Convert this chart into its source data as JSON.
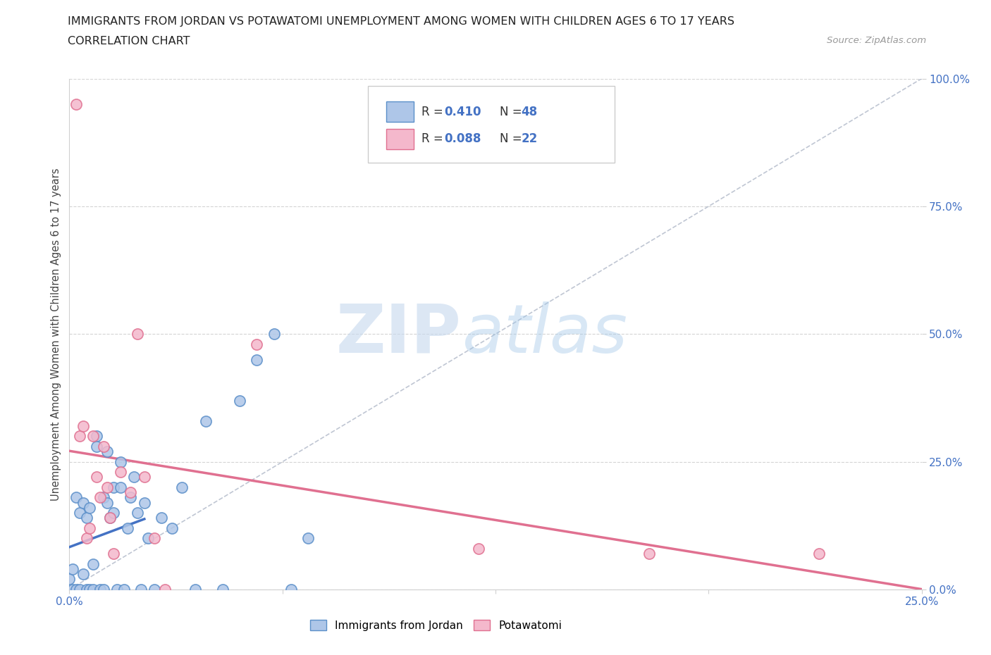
{
  "title_line1": "IMMIGRANTS FROM JORDAN VS POTAWATOMI UNEMPLOYMENT AMONG WOMEN WITH CHILDREN AGES 6 TO 17 YEARS",
  "title_line2": "CORRELATION CHART",
  "source": "Source: ZipAtlas.com",
  "ylabel_label": "Unemployment Among Women with Children Ages 6 to 17 years",
  "color_jordan": "#aec6e8",
  "color_jordan_edge": "#5b8fc9",
  "color_potawatomi": "#f4b8cc",
  "color_potawatomi_edge": "#e07090",
  "color_blue": "#4472c4",
  "color_pink": "#e07090",
  "color_diag": "#b0b8c8",
  "watermark_color": "#d0e4f4",
  "background_color": "#ffffff",
  "grid_color": "#d0d0d0",
  "tick_color": "#4472c4",
  "jordan_x": [
    0.0,
    0.001,
    0.001,
    0.002,
    0.002,
    0.003,
    0.003,
    0.004,
    0.004,
    0.005,
    0.005,
    0.006,
    0.006,
    0.007,
    0.007,
    0.008,
    0.008,
    0.009,
    0.01,
    0.01,
    0.011,
    0.011,
    0.012,
    0.013,
    0.013,
    0.014,
    0.015,
    0.015,
    0.016,
    0.017,
    0.018,
    0.019,
    0.02,
    0.021,
    0.022,
    0.023,
    0.025,
    0.027,
    0.03,
    0.033,
    0.037,
    0.04,
    0.045,
    0.05,
    0.055,
    0.06,
    0.065,
    0.07
  ],
  "jordan_y": [
    0.02,
    0.0,
    0.04,
    0.0,
    0.18,
    0.0,
    0.15,
    0.03,
    0.17,
    0.0,
    0.14,
    0.0,
    0.16,
    0.05,
    0.0,
    0.3,
    0.28,
    0.0,
    0.18,
    0.0,
    0.17,
    0.27,
    0.14,
    0.2,
    0.15,
    0.0,
    0.25,
    0.2,
    0.0,
    0.12,
    0.18,
    0.22,
    0.15,
    0.0,
    0.17,
    0.1,
    0.0,
    0.14,
    0.12,
    0.2,
    0.0,
    0.33,
    0.0,
    0.37,
    0.45,
    0.5,
    0.0,
    0.1
  ],
  "potawatomi_x": [
    0.002,
    0.003,
    0.004,
    0.005,
    0.006,
    0.007,
    0.008,
    0.009,
    0.01,
    0.011,
    0.012,
    0.013,
    0.015,
    0.018,
    0.02,
    0.022,
    0.025,
    0.028,
    0.055,
    0.12,
    0.17,
    0.22
  ],
  "potawatomi_y": [
    0.95,
    0.3,
    0.32,
    0.1,
    0.12,
    0.3,
    0.22,
    0.18,
    0.28,
    0.2,
    0.14,
    0.07,
    0.23,
    0.19,
    0.5,
    0.22,
    0.1,
    0.0,
    0.48,
    0.08,
    0.07,
    0.07
  ],
  "xlim": [
    0.0,
    0.25
  ],
  "ylim": [
    0.0,
    1.0
  ],
  "yticks": [
    0.0,
    0.25,
    0.5,
    0.75,
    1.0
  ],
  "xticks": [
    0.0,
    0.0625,
    0.125,
    0.1875,
    0.25
  ],
  "ytick_labels": [
    "0.0%",
    "25.0%",
    "50.0%",
    "75.0%",
    "100.0%"
  ],
  "xtick_labels": [
    "0.0%",
    "",
    "",
    "",
    "25.0%"
  ]
}
